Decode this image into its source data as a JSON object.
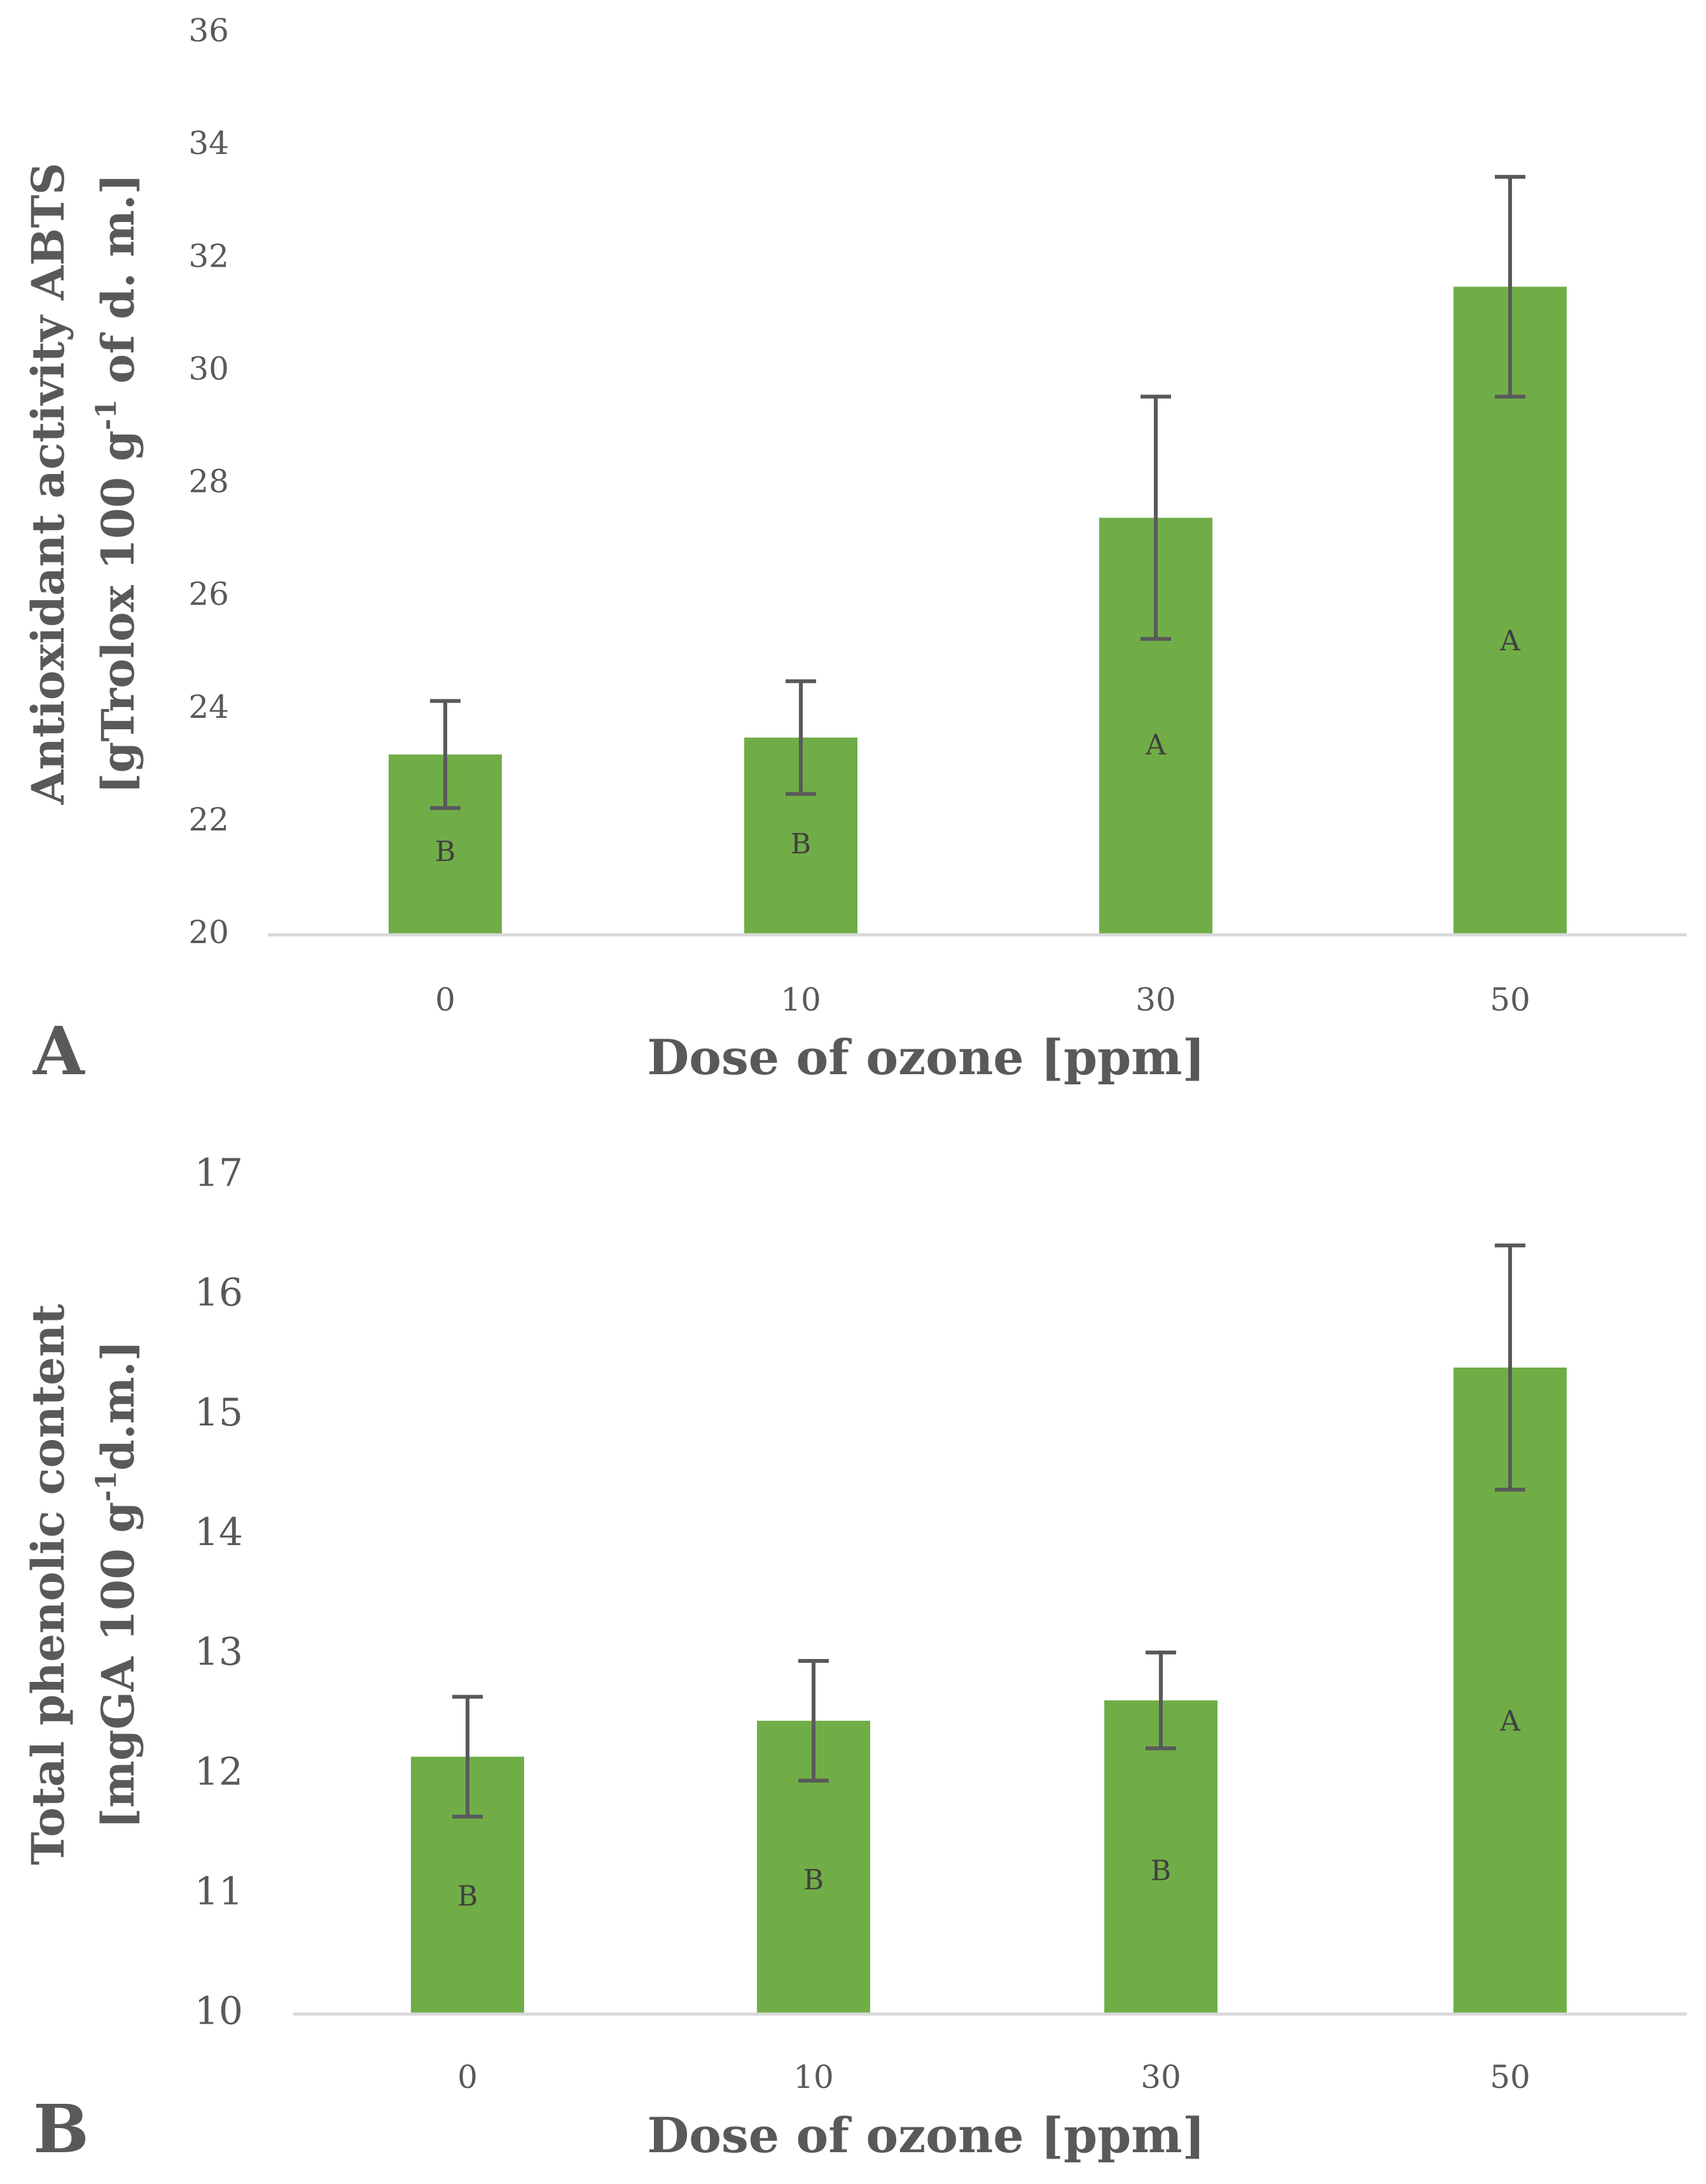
{
  "chart_data": [
    {
      "type": "bar",
      "panel_label": "A",
      "categories": [
        "0",
        "10",
        "30",
        "50"
      ],
      "values": [
        23.2,
        23.5,
        27.4,
        31.5
      ],
      "errors": [
        0.95,
        1.0,
        2.15,
        1.95
      ],
      "group_letters": [
        "B",
        "B",
        "A",
        "A"
      ],
      "xlabel": "Dose of ozone [ppm]",
      "ylabel_line1": "Antioxidant activity ABTS",
      "ylabel_line2_pre": "[gTrolox 100 g",
      "ylabel_line2_sup": "-1",
      "ylabel_line2_post": " of d. m.]",
      "ylim": [
        20,
        36
      ],
      "ytick_step": 2,
      "yticks": [
        "20",
        "22",
        "24",
        "26",
        "28",
        "30",
        "32",
        "34",
        "36"
      ],
      "bar_color": "#70AD47",
      "errorbar_color": "#595959",
      "axis_color": "#D9D9D9"
    },
    {
      "type": "bar",
      "panel_label": "B",
      "categories": [
        "0",
        "10",
        "30",
        "50"
      ],
      "values": [
        12.15,
        12.45,
        12.62,
        15.4
      ],
      "errors": [
        0.5,
        0.5,
        0.4,
        1.02
      ],
      "group_letters": [
        "B",
        "B",
        "B",
        "A"
      ],
      "xlabel": "Dose of ozone [ppm]",
      "ylabel_line1": "Total phenolic content",
      "ylabel_line2_pre": "[mgGA 100 g",
      "ylabel_line2_sup": "-1",
      "ylabel_line2_post": "d.m.]",
      "ylim": [
        10,
        17
      ],
      "ytick_step": 1,
      "yticks": [
        "10",
        "11",
        "12",
        "13",
        "14",
        "15",
        "16",
        "17"
      ],
      "bar_color": "#70AD47",
      "errorbar_color": "#595959",
      "axis_color": "#D9D9D9"
    }
  ]
}
